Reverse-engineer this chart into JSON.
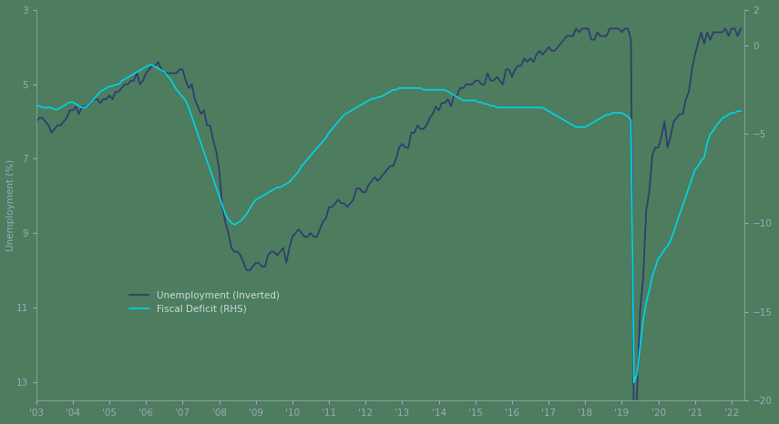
{
  "background_color": "#4d7c5f",
  "line1_color": "#2d3b6e",
  "line2_color": "#00d4e8",
  "left_ylabel": "Unemployment (%)",
  "left_ylim": [
    13.5,
    3.0
  ],
  "right_ylim": [
    -20,
    2
  ],
  "left_yticks": [
    3,
    5,
    7,
    9,
    11,
    13
  ],
  "right_yticks": [
    -20,
    -15,
    -10,
    -5,
    0,
    2
  ],
  "legend_labels": [
    "Unemployment (Inverted)",
    "Fiscal Deficit (RHS)"
  ],
  "unemployment_monthly": [
    6.0,
    5.9,
    5.9,
    6.0,
    6.1,
    6.3,
    6.2,
    6.1,
    6.1,
    6.0,
    5.9,
    5.7,
    5.7,
    5.6,
    5.8,
    5.6,
    5.6,
    5.6,
    5.5,
    5.4,
    5.4,
    5.5,
    5.4,
    5.4,
    5.3,
    5.4,
    5.2,
    5.2,
    5.1,
    5.0,
    5.0,
    4.9,
    4.9,
    4.7,
    5.0,
    4.9,
    4.7,
    4.6,
    4.5,
    4.5,
    4.4,
    4.6,
    4.7,
    4.7,
    4.7,
    4.7,
    4.7,
    4.6,
    4.6,
    4.9,
    5.1,
    5.0,
    5.4,
    5.6,
    5.8,
    5.7,
    6.1,
    6.1,
    6.5,
    6.8,
    7.3,
    8.3,
    8.7,
    9.0,
    9.4,
    9.5,
    9.5,
    9.6,
    9.8,
    10.0,
    10.0,
    9.9,
    9.8,
    9.8,
    9.9,
    9.9,
    9.6,
    9.5,
    9.5,
    9.6,
    9.5,
    9.4,
    9.8,
    9.4,
    9.1,
    9.0,
    8.9,
    9.0,
    9.1,
    9.1,
    9.0,
    9.1,
    9.1,
    8.9,
    8.7,
    8.6,
    8.3,
    8.3,
    8.2,
    8.1,
    8.2,
    8.2,
    8.3,
    8.2,
    8.1,
    7.8,
    7.8,
    7.9,
    7.9,
    7.7,
    7.6,
    7.5,
    7.6,
    7.5,
    7.4,
    7.3,
    7.2,
    7.2,
    7.0,
    6.7,
    6.6,
    6.7,
    6.7,
    6.3,
    6.3,
    6.1,
    6.2,
    6.2,
    6.1,
    5.9,
    5.8,
    5.6,
    5.7,
    5.5,
    5.5,
    5.4,
    5.6,
    5.3,
    5.3,
    5.1,
    5.1,
    5.0,
    5.0,
    5.0,
    4.9,
    4.9,
    5.0,
    5.0,
    4.7,
    4.9,
    4.9,
    4.8,
    4.9,
    5.0,
    4.6,
    4.6,
    4.8,
    4.6,
    4.5,
    4.5,
    4.3,
    4.4,
    4.3,
    4.4,
    4.2,
    4.1,
    4.2,
    4.1,
    4.0,
    4.1,
    4.1,
    4.0,
    3.9,
    3.8,
    3.7,
    3.7,
    3.7,
    3.5,
    3.6,
    3.5,
    3.5,
    3.5,
    3.8,
    3.8,
    3.6,
    3.7,
    3.7,
    3.7,
    3.5,
    3.5,
    3.5,
    3.5,
    3.6,
    3.5,
    3.5,
    3.8,
    14.7,
    13.3,
    11.1,
    10.2,
    8.4,
    7.9,
    6.9,
    6.7,
    6.7,
    6.4,
    6.0,
    6.7,
    6.4,
    6.0,
    5.9,
    5.8,
    5.8,
    5.4,
    5.2,
    4.6,
    4.2,
    3.9,
    3.6,
    3.9,
    3.6,
    3.8,
    3.6,
    3.6,
    3.6,
    3.6,
    3.5,
    3.7,
    3.5,
    3.5,
    3.7,
    3.5
  ],
  "fiscal_monthly": [
    -3.4,
    -3.4,
    -3.5,
    -3.5,
    -3.5,
    -3.5,
    -3.6,
    -3.6,
    -3.5,
    -3.4,
    -3.3,
    -3.2,
    -3.2,
    -3.3,
    -3.4,
    -3.5,
    -3.5,
    -3.4,
    -3.2,
    -3.0,
    -2.8,
    -2.6,
    -2.5,
    -2.4,
    -2.3,
    -2.3,
    -2.2,
    -2.2,
    -2.0,
    -1.9,
    -1.8,
    -1.7,
    -1.6,
    -1.5,
    -1.4,
    -1.3,
    -1.2,
    -1.1,
    -1.1,
    -1.2,
    -1.3,
    -1.4,
    -1.5,
    -1.7,
    -1.9,
    -2.2,
    -2.5,
    -2.7,
    -2.9,
    -3.1,
    -3.5,
    -4.0,
    -4.5,
    -5.0,
    -5.5,
    -6.0,
    -6.5,
    -7.0,
    -7.5,
    -8.0,
    -8.5,
    -9.0,
    -9.5,
    -9.8,
    -10.0,
    -10.1,
    -10.0,
    -9.9,
    -9.7,
    -9.5,
    -9.2,
    -8.9,
    -8.7,
    -8.6,
    -8.5,
    -8.4,
    -8.3,
    -8.2,
    -8.1,
    -8.0,
    -8.0,
    -7.9,
    -7.8,
    -7.7,
    -7.5,
    -7.3,
    -7.1,
    -6.8,
    -6.6,
    -6.4,
    -6.2,
    -6.0,
    -5.8,
    -5.6,
    -5.4,
    -5.2,
    -4.9,
    -4.7,
    -4.5,
    -4.3,
    -4.1,
    -3.9,
    -3.8,
    -3.7,
    -3.6,
    -3.5,
    -3.4,
    -3.3,
    -3.2,
    -3.1,
    -3.0,
    -3.0,
    -2.9,
    -2.9,
    -2.8,
    -2.7,
    -2.6,
    -2.5,
    -2.5,
    -2.4,
    -2.4,
    -2.4,
    -2.4,
    -2.4,
    -2.4,
    -2.4,
    -2.4,
    -2.5,
    -2.5,
    -2.5,
    -2.5,
    -2.5,
    -2.5,
    -2.5,
    -2.5,
    -2.6,
    -2.7,
    -2.8,
    -2.9,
    -3.0,
    -3.1,
    -3.1,
    -3.1,
    -3.1,
    -3.1,
    -3.2,
    -3.2,
    -3.3,
    -3.3,
    -3.4,
    -3.4,
    -3.5,
    -3.5,
    -3.5,
    -3.5,
    -3.5,
    -3.5,
    -3.5,
    -3.5,
    -3.5,
    -3.5,
    -3.5,
    -3.5,
    -3.5,
    -3.5,
    -3.5,
    -3.5,
    -3.6,
    -3.7,
    -3.8,
    -3.9,
    -4.0,
    -4.1,
    -4.2,
    -4.3,
    -4.4,
    -4.5,
    -4.6,
    -4.6,
    -4.6,
    -4.6,
    -4.5,
    -4.4,
    -4.3,
    -4.2,
    -4.1,
    -4.0,
    -3.9,
    -3.9,
    -3.8,
    -3.8,
    -3.8,
    -3.8,
    -3.9,
    -4.0,
    -4.2,
    -19.0,
    -18.5,
    -17.0,
    -15.5,
    -14.5,
    -13.8,
    -13.0,
    -12.5,
    -12.0,
    -11.8,
    -11.5,
    -11.3,
    -11.0,
    -10.5,
    -10.0,
    -9.5,
    -9.0,
    -8.5,
    -8.0,
    -7.5,
    -7.0,
    -6.8,
    -6.5,
    -6.3,
    -5.5,
    -5.0,
    -4.8,
    -4.5,
    -4.3,
    -4.1,
    -4.0,
    -3.9,
    -3.8,
    -3.8,
    -3.7,
    -3.7
  ]
}
